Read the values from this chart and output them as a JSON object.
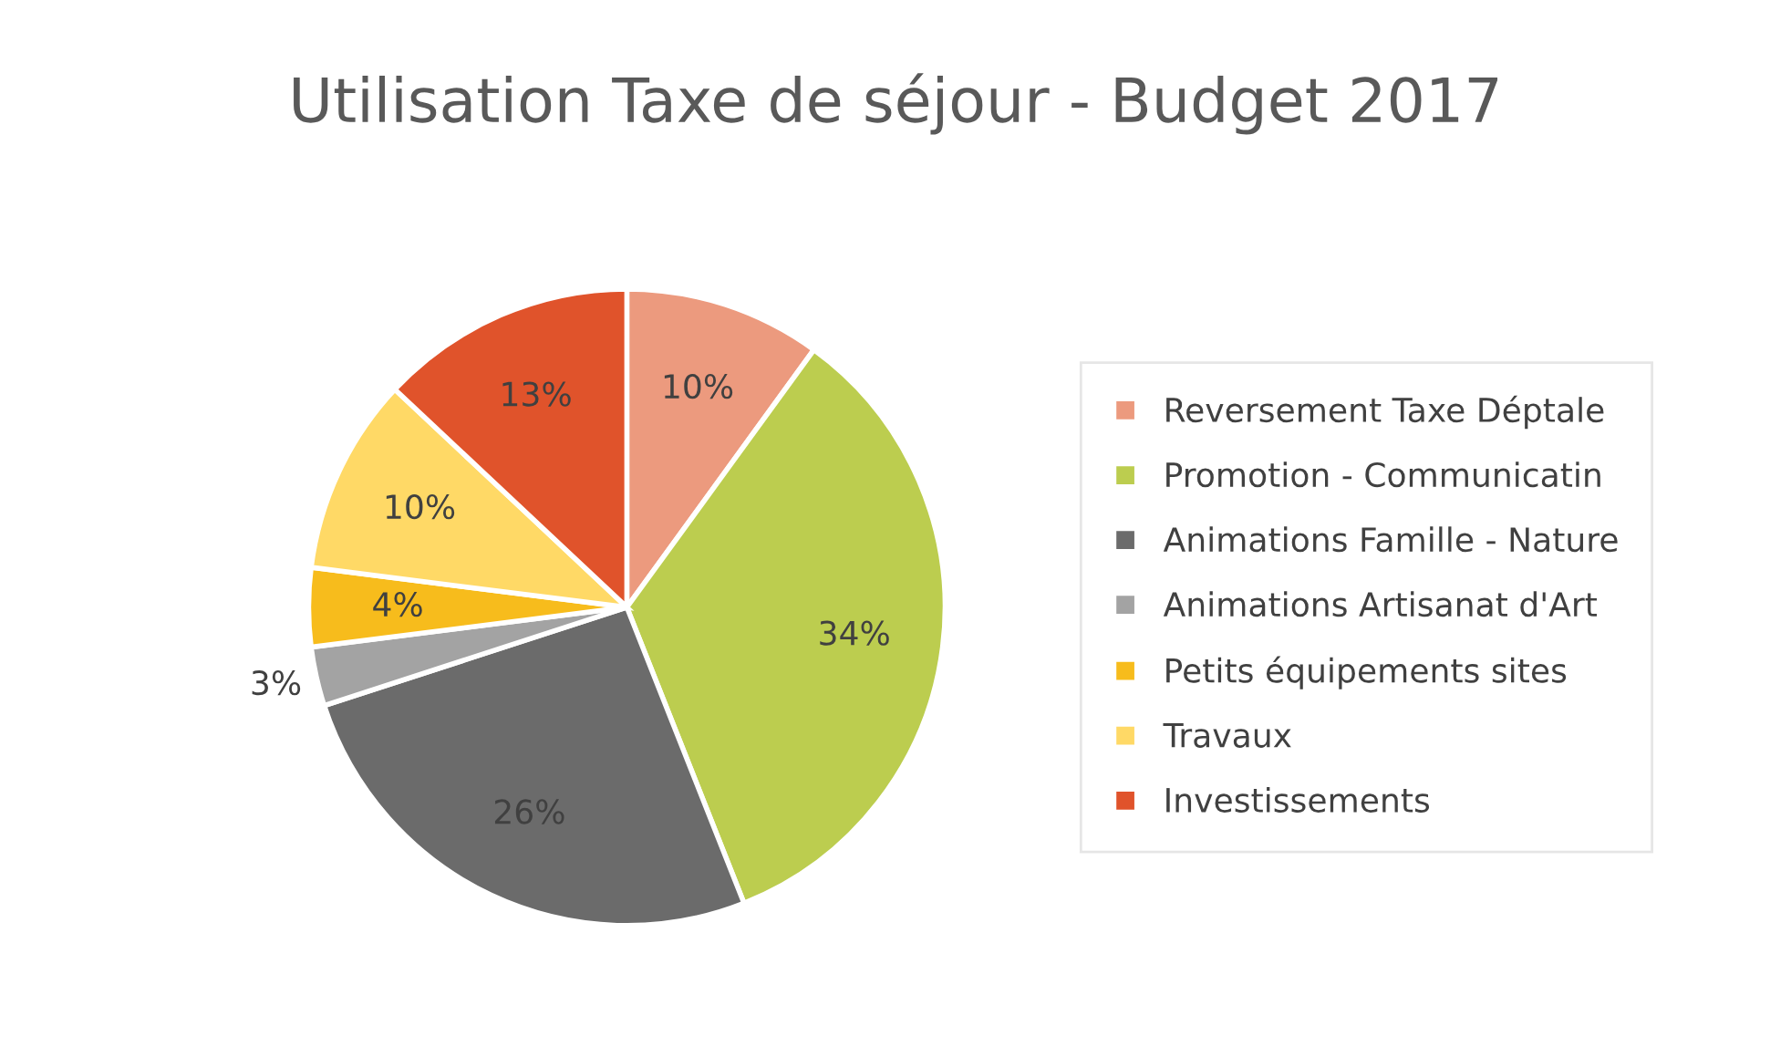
{
  "chart_data": {
    "type": "pie",
    "title": "Utilisation Taxe de séjour - Budget 2017",
    "categories": [
      "Reversement Taxe Déptale",
      "Promotion - Communicatin",
      "Animations Famille - Nature",
      "Animations Artisanat d'Art",
      "Petits équipements sites",
      "Travaux",
      "Investissements"
    ],
    "values": [
      10,
      34,
      26,
      3,
      4,
      10,
      13
    ],
    "value_labels": [
      "10%",
      "34%",
      "26%",
      "3%",
      "4%",
      "10%",
      "13%"
    ],
    "colors": [
      "#ec9a7e",
      "#bccd4f",
      "#6b6b6b",
      "#a3a3a3",
      "#f7bc1c",
      "#ffd966",
      "#e0532b"
    ],
    "legend": "right"
  }
}
